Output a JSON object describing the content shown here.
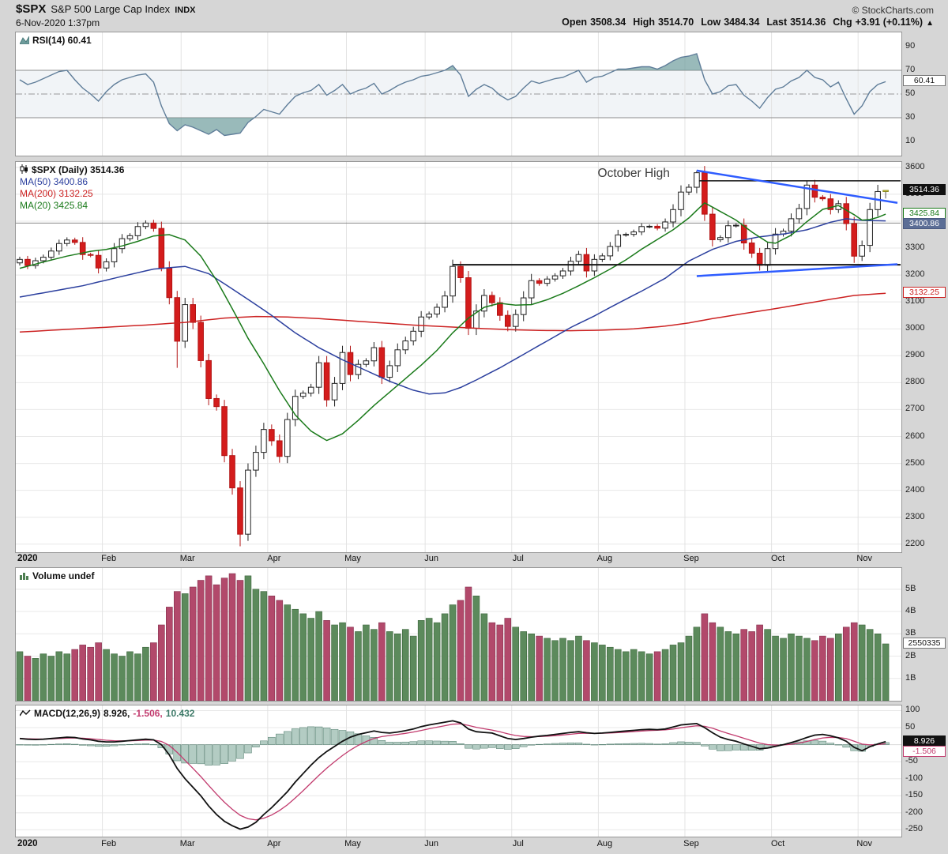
{
  "header": {
    "symbol": "$SPX",
    "name": "S&P 500 Large Cap Index",
    "exchange": "INDX",
    "datetime": "6-Nov-2020 1:37pm",
    "credit": "© StockCharts.com",
    "quote": {
      "open_label": "Open",
      "open": "3508.34",
      "high_label": "High",
      "high": "3514.70",
      "low_label": "Low",
      "low": "3484.34",
      "last_label": "Last",
      "last": "3514.36",
      "chg_label": "Chg",
      "chg": "+3.91 (+0.11%)",
      "arrow": "▲"
    }
  },
  "rsi_panel": {
    "legend": "RSI(14) 60.41",
    "axis_ticks": [
      90,
      70,
      50,
      30,
      10
    ],
    "value_labels": [
      {
        "text": "60.41",
        "value": 60.41,
        "kind": "plain"
      }
    ]
  },
  "main_panel": {
    "legend_title": "$SPX (Daily) 3514.36",
    "legend_ma50": "MA(50) 3400.86",
    "legend_ma200": "MA(200) 3132.25",
    "legend_ma20": "MA(20) 3425.84",
    "axis_ticks": [
      3600,
      3500,
      3400,
      3300,
      3200,
      3100,
      3000,
      2900,
      2800,
      2700,
      2600,
      2500,
      2400,
      2300,
      2200
    ],
    "value_labels": [
      {
        "text": "3514.36",
        "value": 3514.36,
        "kind": "last"
      },
      {
        "text": "3425.84",
        "value": 3425.84,
        "kind": "ma20"
      },
      {
        "text": "3400.86",
        "value": 3400.86,
        "kind": "ma50"
      },
      {
        "text": "3132.25",
        "value": 3132.25,
        "kind": "ma200"
      }
    ]
  },
  "volume_panel": {
    "legend": "Volume undef",
    "axis_ticks": [
      {
        "label": "5B",
        "value": 5
      },
      {
        "label": "4B",
        "value": 4
      },
      {
        "label": "3B",
        "value": 3
      },
      {
        "label": "2B",
        "value": 2
      },
      {
        "label": "1B",
        "value": 1
      }
    ],
    "value_labels": [
      {
        "text": "2550335",
        "value": 2.55,
        "kind": "plain"
      }
    ]
  },
  "macd_panel": {
    "legend_name": "MACD(12,26,9)",
    "legend_macd": "8.926,",
    "legend_signal": "-1.506,",
    "legend_hist": "10.432",
    "axis_ticks": [
      100,
      50,
      0,
      -50,
      -100,
      -150,
      -200,
      -250
    ],
    "value_labels": [
      {
        "text": "8.926",
        "value": 8.926,
        "kind": "macd"
      },
      {
        "text": "-1.506",
        "value": -1.506,
        "kind": "signal"
      }
    ]
  },
  "colors": {
    "trend": "#2e5cff",
    "candle_up_fill": "#ffffff",
    "candle_up_edge": "#222222",
    "candle_down_fill": "#d41c1c",
    "candle_down_edge": "#b21414",
    "last_candle_fill": "#f2e23c",
    "last_candle_edge": "#8a8a20",
    "ma20": "#1a7a1a",
    "ma50": "#2b3f9e",
    "ma200": "#cc2222",
    "rsi_line": "#5f7d99",
    "fill_teal": "#6e9c9c",
    "vol_up": "#5c8a5c",
    "vol_up_edge": "#3c663c",
    "vol_down": "#b2496b",
    "vol_down_edge": "#84304d",
    "macd_line": "#111111",
    "macd_signal": "#c23b6e",
    "macd_hist": "#74a291",
    "macd_hist_edge": "#4d7a6a",
    "grid": "#e8e8e8",
    "grid_v": "#e3e3e3"
  },
  "chart_data": [
    {
      "id": "rsi",
      "type": "line",
      "name": "RSI(14)",
      "last": 60.41,
      "overbought": 70,
      "midline": 50,
      "oversold": 30,
      "ydomain": [
        -2,
        102
      ],
      "values": [
        62,
        58,
        60,
        63,
        66,
        69,
        70,
        62,
        55,
        50,
        44,
        52,
        58,
        62,
        64,
        66,
        67,
        60,
        40,
        25,
        19,
        24,
        22,
        19,
        16,
        20,
        15,
        16,
        17,
        26,
        31,
        37,
        35,
        33,
        41,
        48,
        51,
        53,
        58,
        49,
        53,
        58,
        50,
        53,
        55,
        59,
        50,
        53,
        57,
        60,
        62,
        65,
        66,
        68,
        70,
        74,
        66,
        48,
        54,
        58,
        55,
        49,
        45,
        48,
        55,
        61,
        59,
        61,
        63,
        64,
        67,
        70,
        60,
        64,
        65,
        68,
        71,
        71,
        72,
        73,
        73,
        71,
        74,
        78,
        81,
        82,
        84,
        62,
        50,
        52,
        57,
        58,
        49,
        44,
        38,
        47,
        54,
        56,
        61,
        64,
        70,
        64,
        62,
        56,
        60,
        46,
        33,
        40,
        52,
        58,
        60.41
      ]
    },
    {
      "id": "price",
      "type": "candlestick",
      "name": "$SPX Daily",
      "last": 3514.36,
      "ydomain": [
        2170,
        3620
      ],
      "first_open": 3245,
      "closes": [
        3258,
        3235,
        3253,
        3266,
        3289,
        3317,
        3330,
        3321,
        3276,
        3273,
        3226,
        3249,
        3298,
        3335,
        3346,
        3380,
        3393,
        3373,
        3226,
        3116,
        2954,
        3090,
        3024,
        2882,
        2741,
        2711,
        2529,
        2409,
        2237,
        2475,
        2541,
        2626,
        2584,
        2526,
        2663,
        2749,
        2761,
        2783,
        2874,
        2736,
        2797,
        2912,
        2830,
        2868,
        2881,
        2930,
        2820,
        2863,
        2922,
        2955,
        2991,
        3044,
        3055,
        3080,
        3122,
        3232,
        3190,
        3002,
        3066,
        3124,
        3097,
        3050,
        3009,
        3053,
        3115,
        3179,
        3169,
        3185,
        3197,
        3215,
        3251,
        3276,
        3215,
        3258,
        3271,
        3306,
        3349,
        3351,
        3360,
        3380,
        3381,
        3374,
        3397,
        3443,
        3508,
        3526,
        3580,
        3426,
        3331,
        3339,
        3383,
        3385,
        3319,
        3281,
        3236,
        3298,
        3352,
        3363,
        3409,
        3447,
        3534,
        3489,
        3483,
        3443,
        3465,
        3391,
        3270,
        3310,
        3443,
        3510,
        3514.36
      ],
      "wick_overrides": {
        "18": {
          "low": 3214
        },
        "20": {
          "low": 2855
        },
        "28": {
          "low": 2192
        },
        "86": {
          "high": 3588
        },
        "100": {
          "high": 3550
        },
        "110": {
          "high": 3514.7,
          "low": 3484.3
        }
      },
      "ma20": {
        "period": 20,
        "last": 3425.84,
        "keys": [
          [
            0,
            3225
          ],
          [
            3,
            3248
          ],
          [
            6,
            3270
          ],
          [
            9,
            3288
          ],
          [
            11,
            3295
          ],
          [
            13,
            3308
          ],
          [
            15,
            3325
          ],
          [
            17,
            3345
          ],
          [
            19,
            3350
          ],
          [
            21,
            3330
          ],
          [
            23,
            3270
          ],
          [
            25,
            3180
          ],
          [
            27,
            3075
          ],
          [
            29,
            2965
          ],
          [
            31,
            2870
          ],
          [
            33,
            2770
          ],
          [
            35,
            2680
          ],
          [
            37,
            2620
          ],
          [
            39,
            2585
          ],
          [
            41,
            2610
          ],
          [
            43,
            2660
          ],
          [
            45,
            2715
          ],
          [
            47,
            2765
          ],
          [
            49,
            2815
          ],
          [
            51,
            2865
          ],
          [
            53,
            2920
          ],
          [
            55,
            2985
          ],
          [
            57,
            3040
          ],
          [
            59,
            3080
          ],
          [
            61,
            3095
          ],
          [
            63,
            3088
          ],
          [
            65,
            3090
          ],
          [
            67,
            3108
          ],
          [
            69,
            3132
          ],
          [
            71,
            3160
          ],
          [
            73,
            3190
          ],
          [
            75,
            3222
          ],
          [
            77,
            3256
          ],
          [
            79,
            3296
          ],
          [
            81,
            3332
          ],
          [
            83,
            3368
          ],
          [
            85,
            3412
          ],
          [
            87,
            3468
          ],
          [
            89,
            3436
          ],
          [
            91,
            3404
          ],
          [
            93,
            3360
          ],
          [
            95,
            3322
          ],
          [
            96,
            3318
          ],
          [
            98,
            3348
          ],
          [
            100,
            3398
          ],
          [
            102,
            3444
          ],
          [
            104,
            3458
          ],
          [
            106,
            3424
          ],
          [
            107,
            3404
          ],
          [
            108,
            3406
          ],
          [
            109,
            3414
          ],
          [
            110,
            3426
          ]
        ]
      },
      "ma50": {
        "period": 50,
        "last": 3400.86,
        "keys": [
          [
            0,
            3118
          ],
          [
            8,
            3160
          ],
          [
            13,
            3195
          ],
          [
            17,
            3222
          ],
          [
            21,
            3232
          ],
          [
            24,
            3205
          ],
          [
            27,
            3148
          ],
          [
            30,
            3090
          ],
          [
            32,
            3050
          ],
          [
            35,
            2985
          ],
          [
            38,
            2930
          ],
          [
            41,
            2885
          ],
          [
            44,
            2845
          ],
          [
            47,
            2805
          ],
          [
            50,
            2772
          ],
          [
            52,
            2758
          ],
          [
            54,
            2762
          ],
          [
            56,
            2782
          ],
          [
            58,
            2810
          ],
          [
            61,
            2855
          ],
          [
            64,
            2905
          ],
          [
            67,
            2955
          ],
          [
            70,
            3005
          ],
          [
            73,
            3048
          ],
          [
            76,
            3095
          ],
          [
            79,
            3140
          ],
          [
            82,
            3188
          ],
          [
            85,
            3252
          ],
          [
            88,
            3295
          ],
          [
            91,
            3325
          ],
          [
            94,
            3342
          ],
          [
            97,
            3352
          ],
          [
            100,
            3368
          ],
          [
            103,
            3396
          ],
          [
            105,
            3409
          ],
          [
            107,
            3403
          ],
          [
            110,
            3401
          ]
        ]
      },
      "ma200": {
        "period": 200,
        "last": 3132.25,
        "keys": [
          [
            0,
            2988
          ],
          [
            6,
            2998
          ],
          [
            11,
            3006
          ],
          [
            16,
            3014
          ],
          [
            21,
            3024
          ],
          [
            26,
            3040
          ],
          [
            30,
            3046
          ],
          [
            34,
            3044
          ],
          [
            38,
            3038
          ],
          [
            42,
            3030
          ],
          [
            46,
            3022
          ],
          [
            50,
            3014
          ],
          [
            54,
            3008
          ],
          [
            58,
            3002
          ],
          [
            62,
            2997
          ],
          [
            66,
            2994
          ],
          [
            70,
            2993
          ],
          [
            74,
            2995
          ],
          [
            78,
            3000
          ],
          [
            82,
            3010
          ],
          [
            85,
            3022
          ],
          [
            88,
            3038
          ],
          [
            91,
            3052
          ],
          [
            94,
            3066
          ],
          [
            97,
            3080
          ],
          [
            100,
            3095
          ],
          [
            103,
            3110
          ],
          [
            106,
            3124
          ],
          [
            110,
            3132
          ]
        ]
      },
      "x_ticks": [
        {
          "label": "2020",
          "i": 0
        },
        {
          "label": "Feb",
          "i": 11
        },
        {
          "label": "Mar",
          "i": 21
        },
        {
          "label": "Apr",
          "i": 32
        },
        {
          "label": "May",
          "i": 42
        },
        {
          "label": "Jun",
          "i": 52
        },
        {
          "label": "Jul",
          "i": 63
        },
        {
          "label": "Aug",
          "i": 74
        },
        {
          "label": "Sep",
          "i": 85
        },
        {
          "label": "Oct",
          "i": 96
        },
        {
          "label": "Nov",
          "i": 107
        }
      ],
      "hlines": [
        {
          "price": 3393,
          "from": -0.5,
          "to": 112,
          "width": 1,
          "color": "#8a8a8a",
          "behind": true
        },
        {
          "price": 3238,
          "from": 55,
          "to": 112,
          "width": 2,
          "color": "#151515",
          "behind": false
        },
        {
          "price": 3550,
          "from": 86.3,
          "to": 112,
          "width": 1.5,
          "color": "#151515",
          "behind": false
        }
      ],
      "trendlines": [
        {
          "from": [
            86,
            3588
          ],
          "to": [
            111.5,
            3468
          ]
        },
        {
          "from": [
            86,
            3196
          ],
          "to": [
            111.5,
            3240
          ]
        }
      ],
      "annotation": {
        "label": "October High",
        "i": 78,
        "price": 3564
      }
    },
    {
      "id": "volume",
      "type": "bar",
      "name": "Volume",
      "last_display": "2550335",
      "unit": "billions",
      "ydomain": [
        0,
        5.95
      ],
      "values": [
        2.2,
        2.0,
        1.9,
        2.1,
        2.0,
        2.2,
        2.1,
        2.3,
        2.5,
        2.4,
        2.6,
        2.3,
        2.1,
        2.0,
        2.2,
        2.1,
        2.4,
        2.6,
        3.4,
        4.2,
        4.9,
        4.8,
        5.1,
        5.4,
        5.6,
        5.2,
        5.5,
        5.7,
        5.4,
        5.6,
        5.0,
        4.9,
        4.7,
        4.5,
        4.3,
        4.1,
        3.9,
        3.7,
        4.0,
        3.6,
        3.4,
        3.5,
        3.3,
        3.1,
        3.4,
        3.2,
        3.5,
        3.1,
        3.0,
        3.2,
        2.9,
        3.6,
        3.7,
        3.5,
        3.9,
        4.3,
        4.5,
        5.1,
        4.7,
        3.9,
        3.5,
        3.4,
        3.7,
        3.3,
        3.1,
        3.0,
        2.9,
        2.8,
        2.7,
        2.8,
        2.7,
        2.9,
        2.7,
        2.6,
        2.5,
        2.4,
        2.3,
        2.2,
        2.3,
        2.2,
        2.1,
        2.2,
        2.3,
        2.5,
        2.6,
        2.9,
        3.3,
        3.9,
        3.5,
        3.3,
        3.1,
        3.0,
        3.2,
        3.1,
        3.4,
        3.2,
        2.9,
        2.8,
        3.0,
        2.9,
        2.8,
        2.7,
        2.9,
        2.8,
        3.0,
        3.3,
        3.5,
        3.4,
        3.2,
        3.0,
        2.55
      ]
    },
    {
      "id": "macd",
      "type": "line",
      "name": "MACD(12,26,9)",
      "macd_last": 8.926,
      "signal_last": -1.506,
      "hist_last": 10.432,
      "ydomain": [
        -270,
        115
      ],
      "values": [
        18,
        16,
        15,
        16,
        18,
        20,
        22,
        21,
        17,
        14,
        10,
        8,
        8,
        10,
        12,
        14,
        16,
        14,
        0,
        -30,
        -70,
        -100,
        -125,
        -150,
        -180,
        -205,
        -225,
        -238,
        -248,
        -242,
        -228,
        -205,
        -185,
        -162,
        -138,
        -110,
        -85,
        -60,
        -38,
        -20,
        -5,
        10,
        22,
        30,
        35,
        40,
        36,
        34,
        37,
        41,
        46,
        53,
        58,
        62,
        66,
        70,
        64,
        46,
        38,
        36,
        34,
        26,
        18,
        15,
        18,
        22,
        25,
        27,
        30,
        33,
        36,
        38,
        35,
        33,
        34,
        36,
        38,
        40,
        42,
        44,
        45,
        44,
        46,
        52,
        58,
        60,
        62,
        50,
        35,
        22,
        15,
        10,
        2,
        -5,
        -12,
        -10,
        -5,
        0,
        6,
        13,
        21,
        28,
        30,
        26,
        20,
        10,
        -8,
        -18,
        -6,
        2,
        8.926
      ]
    }
  ]
}
